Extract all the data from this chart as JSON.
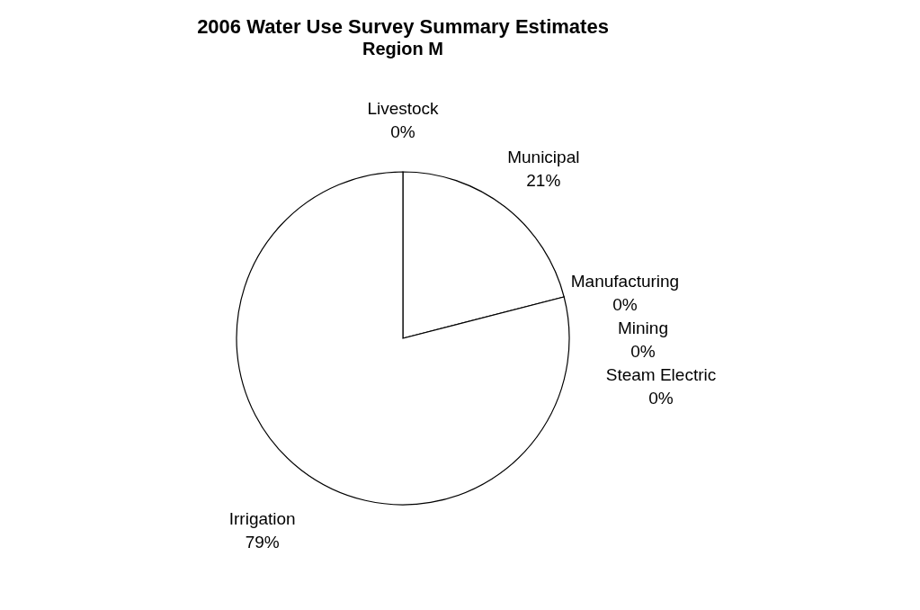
{
  "chart_data": {
    "type": "pie",
    "title": "2006 Water Use Survey Summary Estimates",
    "subtitle": "Region M",
    "categories": [
      "Municipal",
      "Manufacturing",
      "Mining",
      "Steam Electric",
      "Irrigation",
      "Livestock"
    ],
    "values": [
      21,
      0,
      0,
      0,
      79,
      0
    ],
    "value_labels": [
      "21%",
      "0%",
      "0%",
      "0%",
      "79%",
      "0%"
    ],
    "colors": [
      "#ffffff",
      "#b0b0b0",
      "#404040",
      "#e0e0e0",
      "#ffffff",
      "#ffffff"
    ],
    "legend": false
  }
}
